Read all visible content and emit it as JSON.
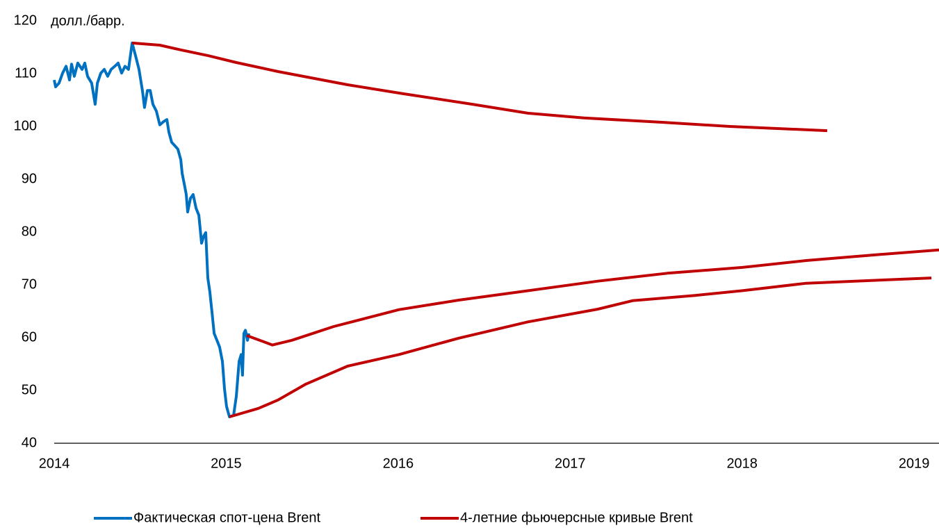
{
  "chart_data": {
    "type": "line",
    "y_unit_label": "долл./барр.",
    "xlim": [
      2014,
      2019.145
    ],
    "xticks": [
      2014,
      2015,
      2016,
      2017,
      2018,
      2019
    ],
    "ylim": [
      40,
      120
    ],
    "yticks": [
      40,
      50,
      60,
      70,
      80,
      90,
      100,
      110,
      120
    ],
    "grid": false,
    "legend": "bottom",
    "series": [
      {
        "name": "Фактическая спот-цена Brent",
        "color": "#0070c0",
        "x": [
          2014.0,
          2014.008,
          2014.028,
          2014.049,
          2014.069,
          2014.089,
          2014.101,
          2014.117,
          2014.137,
          2014.162,
          2014.178,
          2014.194,
          2014.218,
          2014.238,
          2014.251,
          2014.271,
          2014.291,
          2014.311,
          2014.331,
          2014.352,
          2014.372,
          2014.392,
          2014.412,
          2014.432,
          2014.453,
          2014.473,
          2014.493,
          2014.513,
          2014.525,
          2014.542,
          2014.558,
          2014.574,
          2014.594,
          2014.614,
          2014.635,
          2014.655,
          2014.667,
          2014.683,
          2014.703,
          2014.719,
          2014.736,
          2014.744,
          2014.756,
          2014.768,
          2014.776,
          2014.792,
          2014.808,
          2014.825,
          2014.841,
          2014.857,
          2014.869,
          2014.881,
          2014.893,
          2014.905,
          2014.918,
          2014.93,
          2014.946,
          2014.962,
          2014.978,
          2014.99,
          2015.002,
          2015.019,
          2015.043,
          2015.059,
          2015.075,
          2015.087,
          2015.095,
          2015.103,
          2015.112,
          2015.124,
          2015.132
        ],
        "values": [
          108.8,
          107.5,
          108.2,
          110.1,
          111.4,
          108.8,
          111.8,
          109.5,
          112,
          110.8,
          112,
          109.5,
          108.2,
          104.2,
          108.2,
          110.1,
          110.8,
          109.5,
          110.8,
          111.4,
          112,
          110.1,
          111.4,
          110.8,
          115.8,
          113.4,
          110.8,
          106.8,
          103.6,
          106.8,
          106.8,
          104.2,
          102.9,
          100.3,
          100.9,
          101.3,
          98.9,
          97,
          96.3,
          95.7,
          93.7,
          91.1,
          89.1,
          87.1,
          83.8,
          86.4,
          87.1,
          84.5,
          83.2,
          77.9,
          79.2,
          79.9,
          71.3,
          68.7,
          64.7,
          60.8,
          59.5,
          58.2,
          55.5,
          50.3,
          47,
          45,
          45.3,
          48.9,
          55.5,
          56.8,
          52.9,
          60.8,
          61.4,
          59.5,
          60.8
        ]
      },
      {
        "name": "4-летние фьючерсные кривые Brent",
        "color": "#c00000",
        "x": [
          2014.453,
          2014.614,
          2014.736,
          2014.897,
          2015.059,
          2015.302,
          2015.706,
          2016.029,
          2016.433,
          2016.757,
          2017.08,
          2017.525,
          2017.929,
          2018.495,
          null,
          2015.12,
          2015.269,
          2015.382,
          2015.625,
          2016.005,
          2016.352,
          2016.757,
          2017.161,
          2017.565,
          2018.002,
          2018.373,
          2018.778,
          2019.145,
          null,
          2015.019,
          2015.188,
          2015.302,
          2015.463,
          2015.706,
          2016.005,
          2016.352,
          2016.757,
          2017.161,
          2017.363,
          2017.727,
          2018.002,
          2018.373,
          2019.101
        ],
        "values": [
          115.8,
          115.4,
          114.5,
          113.4,
          112.1,
          110.4,
          107.9,
          106.2,
          104.2,
          102.5,
          101.6,
          100.8,
          100,
          99.2,
          null,
          60.4,
          58.6,
          59.5,
          62.1,
          65.3,
          67.1,
          68.9,
          70.7,
          72.2,
          73.3,
          74.6,
          75.7,
          76.6,
          null,
          45,
          46.6,
          48.2,
          51.2,
          54.6,
          56.8,
          59.9,
          63,
          65.4,
          67,
          68,
          68.9,
          70.3,
          71.3
        ]
      }
    ]
  }
}
